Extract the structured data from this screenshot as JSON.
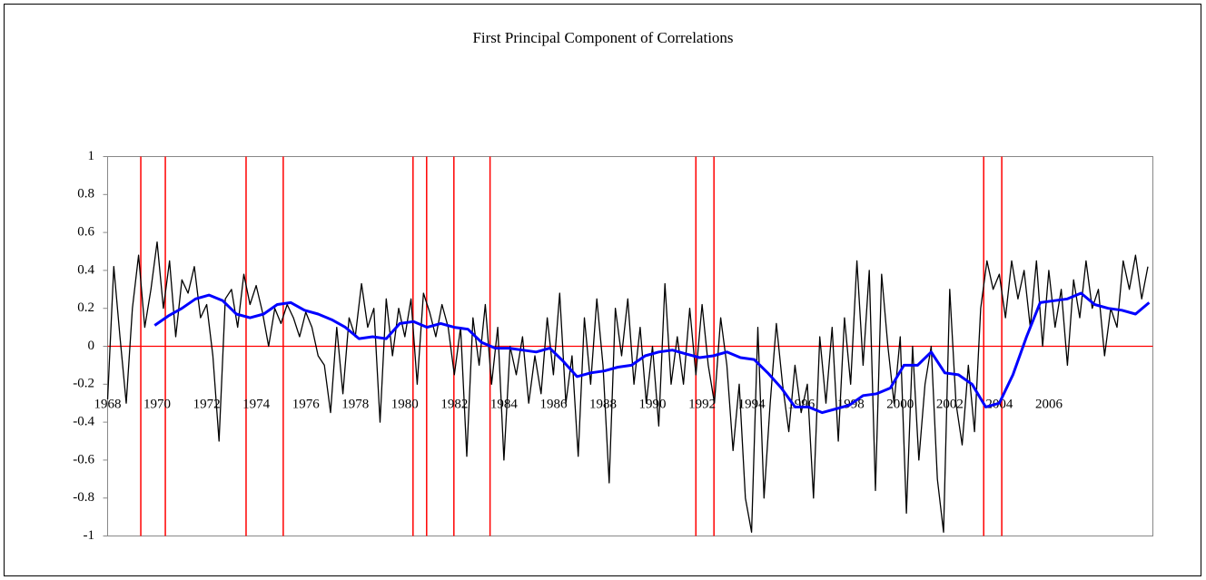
{
  "chart_data": {
    "type": "line",
    "title": "First Principal Component of Correlations",
    "xlim": [
      1968,
      2010.2
    ],
    "xticks": [
      1968,
      1970,
      1972,
      1974,
      1976,
      1978,
      1980,
      1982,
      1984,
      1986,
      1988,
      1990,
      1992,
      1994,
      1996,
      1998,
      2000,
      2002,
      2004,
      2006
    ],
    "ylim": [
      -1,
      1
    ],
    "yticks": [
      -1,
      -0.8,
      -0.6,
      -0.4,
      -0.2,
      0,
      0.2,
      0.4,
      0.6,
      0.8,
      1
    ],
    "grid": false,
    "zero_line_color": "#ff0000",
    "vlines": [
      1969.34,
      1970.33,
      1973.59,
      1975.09,
      1980.33,
      1980.88,
      1981.98,
      1983.44,
      1991.75,
      1992.48,
      2003.37,
      2004.1
    ],
    "vline_color": "#ff0000",
    "series": [
      {
        "color": "#000000",
        "x": [
          1968,
          1968.25,
          1968.5,
          1968.75,
          1969,
          1969.25,
          1969.5,
          1969.75,
          1970,
          1970.25,
          1970.5,
          1970.75,
          1971,
          1971.25,
          1971.5,
          1971.75,
          1972,
          1972.25,
          1972.5,
          1972.75,
          1973,
          1973.25,
          1973.5,
          1973.75,
          1974,
          1974.25,
          1974.5,
          1974.75,
          1975,
          1975.25,
          1975.5,
          1975.75,
          1976,
          1976.25,
          1976.5,
          1976.75,
          1977,
          1977.25,
          1977.5,
          1977.75,
          1978,
          1978.25,
          1978.5,
          1978.75,
          1979,
          1979.25,
          1979.5,
          1979.75,
          1980,
          1980.25,
          1980.5,
          1980.75,
          1981,
          1981.25,
          1981.5,
          1981.75,
          1982,
          1982.25,
          1982.5,
          1982.75,
          1983,
          1983.25,
          1983.5,
          1983.75,
          1984,
          1984.25,
          1984.5,
          1984.75,
          1985,
          1985.25,
          1985.5,
          1985.75,
          1986,
          1986.25,
          1986.5,
          1986.75,
          1987,
          1987.25,
          1987.5,
          1987.75,
          1988,
          1988.25,
          1988.5,
          1988.75,
          1989,
          1989.25,
          1989.5,
          1989.75,
          1990,
          1990.25,
          1990.5,
          1990.75,
          1991,
          1991.25,
          1991.5,
          1991.75,
          1992,
          1992.25,
          1992.5,
          1992.75,
          1993,
          1993.25,
          1993.5,
          1993.75,
          1994,
          1994.25,
          1994.5,
          1994.75,
          1995,
          1995.25,
          1995.5,
          1995.75,
          1996,
          1996.25,
          1996.5,
          1996.75,
          1997,
          1997.25,
          1997.5,
          1997.75,
          1998,
          1998.25,
          1998.5,
          1998.75,
          1999,
          1999.25,
          1999.5,
          1999.75,
          2000,
          2000.25,
          2000.5,
          2000.75,
          2001,
          2001.25,
          2001.5,
          2001.75,
          2002,
          2002.25,
          2002.5,
          2002.75,
          2003,
          2003.25,
          2003.5,
          2003.75,
          2004,
          2004.25,
          2004.5,
          2004.75,
          2005,
          2005.25,
          2005.5,
          2005.75,
          2006,
          2006.25,
          2006.5,
          2006.75,
          2007,
          2007.25,
          2007.5,
          2007.75,
          2008,
          2008.25,
          2008.5,
          2008.75,
          2009,
          2009.25,
          2009.5,
          2009.75,
          2010
        ],
        "values": [
          -0.28,
          0.42,
          0.05,
          -0.3,
          0.2,
          0.48,
          0.1,
          0.3,
          0.55,
          0.2,
          0.45,
          0.05,
          0.35,
          0.28,
          0.42,
          0.15,
          0.22,
          -0.05,
          -0.5,
          0.25,
          0.3,
          0.1,
          0.38,
          0.22,
          0.32,
          0.18,
          0.0,
          0.2,
          0.12,
          0.22,
          0.15,
          0.05,
          0.18,
          0.1,
          -0.05,
          -0.1,
          -0.35,
          0.1,
          -0.25,
          0.15,
          0.05,
          0.33,
          0.1,
          0.2,
          -0.4,
          0.25,
          -0.05,
          0.2,
          0.05,
          0.25,
          -0.2,
          0.28,
          0.18,
          0.05,
          0.22,
          0.1,
          -0.15,
          0.1,
          -0.58,
          0.15,
          -0.1,
          0.22,
          -0.2,
          0.1,
          -0.6,
          0.0,
          -0.15,
          0.05,
          -0.3,
          -0.05,
          -0.25,
          0.15,
          -0.15,
          0.28,
          -0.3,
          -0.05,
          -0.58,
          0.15,
          -0.2,
          0.25,
          -0.1,
          -0.72,
          0.2,
          -0.05,
          0.25,
          -0.2,
          0.1,
          -0.3,
          0.0,
          -0.42,
          0.33,
          -0.2,
          0.05,
          -0.2,
          0.2,
          -0.15,
          0.22,
          -0.1,
          -0.3,
          0.15,
          -0.1,
          -0.55,
          -0.2,
          -0.8,
          -0.98,
          0.1,
          -0.8,
          -0.3,
          0.12,
          -0.2,
          -0.45,
          -0.1,
          -0.35,
          -0.2,
          -0.8,
          0.05,
          -0.3,
          0.1,
          -0.5,
          0.15,
          -0.2,
          0.45,
          -0.1,
          0.4,
          -0.76,
          0.38,
          0.0,
          -0.3,
          0.05,
          -0.88,
          0.0,
          -0.6,
          -0.2,
          0.0,
          -0.7,
          -0.98,
          0.3,
          -0.3,
          -0.52,
          -0.1,
          -0.45,
          0.2,
          0.45,
          0.3,
          0.38,
          0.15,
          0.45,
          0.25,
          0.4,
          0.1,
          0.45,
          0.0,
          0.4,
          0.1,
          0.3,
          -0.1,
          0.35,
          0.15,
          0.45,
          0.2,
          0.3,
          -0.05,
          0.2,
          0.1,
          0.45,
          0.3,
          0.48,
          0.25,
          0.42
        ]
      },
      {
        "color": "#0000ff",
        "x": [
          1969.9,
          1970.45,
          1971,
          1971.55,
          1972.1,
          1972.65,
          1973.2,
          1973.75,
          1974.3,
          1974.85,
          1975.4,
          1975.95,
          1976.5,
          1977.05,
          1977.6,
          1978.15,
          1978.7,
          1979.25,
          1979.8,
          1980.35,
          1980.9,
          1981.45,
          1982,
          1982.55,
          1983.1,
          1983.65,
          1984.2,
          1984.75,
          1985.3,
          1985.85,
          1986.4,
          1986.95,
          1987.5,
          1988.05,
          1988.6,
          1989.15,
          1989.7,
          1990.25,
          1990.8,
          1991.35,
          1991.9,
          1992.45,
          1993,
          1993.55,
          1994.1,
          1994.65,
          1995.2,
          1995.75,
          1996.3,
          1996.85,
          1997.4,
          1997.95,
          1998.5,
          1999.05,
          1999.6,
          2000.15,
          2000.7,
          2001.25,
          2001.8,
          2002.35,
          2002.9,
          2003.45,
          2004,
          2004.55,
          2005.1,
          2005.65,
          2006.2,
          2006.75,
          2007.3,
          2007.85,
          2008.4,
          2008.95,
          2009.5,
          2010.05
        ],
        "values": [
          0.11,
          0.16,
          0.2,
          0.25,
          0.27,
          0.24,
          0.17,
          0.15,
          0.17,
          0.22,
          0.23,
          0.19,
          0.17,
          0.14,
          0.1,
          0.04,
          0.05,
          0.04,
          0.12,
          0.13,
          0.1,
          0.12,
          0.1,
          0.09,
          0.02,
          -0.01,
          -0.01,
          -0.02,
          -0.03,
          -0.01,
          -0.08,
          -0.16,
          -0.14,
          -0.13,
          -0.11,
          -0.1,
          -0.05,
          -0.03,
          -0.02,
          -0.04,
          -0.06,
          -0.05,
          -0.03,
          -0.06,
          -0.07,
          -0.14,
          -0.22,
          -0.32,
          -0.32,
          -0.35,
          -0.33,
          -0.31,
          -0.26,
          -0.25,
          -0.22,
          -0.1,
          -0.1,
          -0.03,
          -0.14,
          -0.15,
          -0.2,
          -0.32,
          -0.3,
          -0.15,
          0.05,
          0.23,
          0.24,
          0.25,
          0.28,
          0.22,
          0.2,
          0.19,
          0.17,
          0.23
        ]
      }
    ]
  }
}
